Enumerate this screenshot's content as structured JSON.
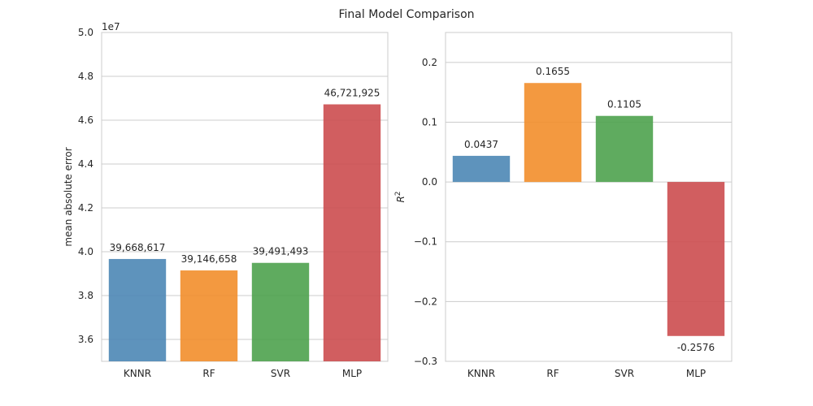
{
  "figure": {
    "title": "Final Model Comparison"
  },
  "chart_data": [
    {
      "type": "bar",
      "categories": [
        "KNNR",
        "RF",
        "SVR",
        "MLP"
      ],
      "values": [
        39668617,
        39146658,
        39491493,
        46721925
      ],
      "value_labels": [
        "39,668,617",
        "39,146,658",
        "39,491,493",
        "46,721,925"
      ],
      "colors": [
        "#4c87b5",
        "#f28e2b",
        "#4ea24e",
        "#cc4c4f"
      ],
      "xlabel": "",
      "ylabel": "mean absolute error",
      "ylim": [
        35000000,
        50000000
      ],
      "y_offset_label": "1e7",
      "yticks": [
        36000000,
        38000000,
        40000000,
        42000000,
        44000000,
        46000000,
        48000000,
        50000000
      ],
      "ytick_labels": [
        "3.6",
        "3.8",
        "4.0",
        "4.2",
        "4.4",
        "4.6",
        "4.8",
        "5.0"
      ],
      "grid": "horizontal"
    },
    {
      "type": "bar",
      "categories": [
        "KNNR",
        "RF",
        "SVR",
        "MLP"
      ],
      "values": [
        0.0437,
        0.1655,
        0.1105,
        -0.2576
      ],
      "value_labels": [
        "0.0437",
        "0.1655",
        "0.1105",
        "-0.2576"
      ],
      "colors": [
        "#4c87b5",
        "#f28e2b",
        "#4ea24e",
        "#cc4c4f"
      ],
      "xlabel": "",
      "ylabel": "R",
      "ylabel_superscript": "2",
      "ylim": [
        -0.3,
        0.25
      ],
      "yticks": [
        -0.3,
        -0.2,
        -0.1,
        0.0,
        0.1,
        0.2
      ],
      "ytick_labels": [
        "−0.3",
        "−0.2",
        "−0.1",
        "0.0",
        "0.1",
        "0.2"
      ],
      "grid": "horizontal"
    }
  ]
}
